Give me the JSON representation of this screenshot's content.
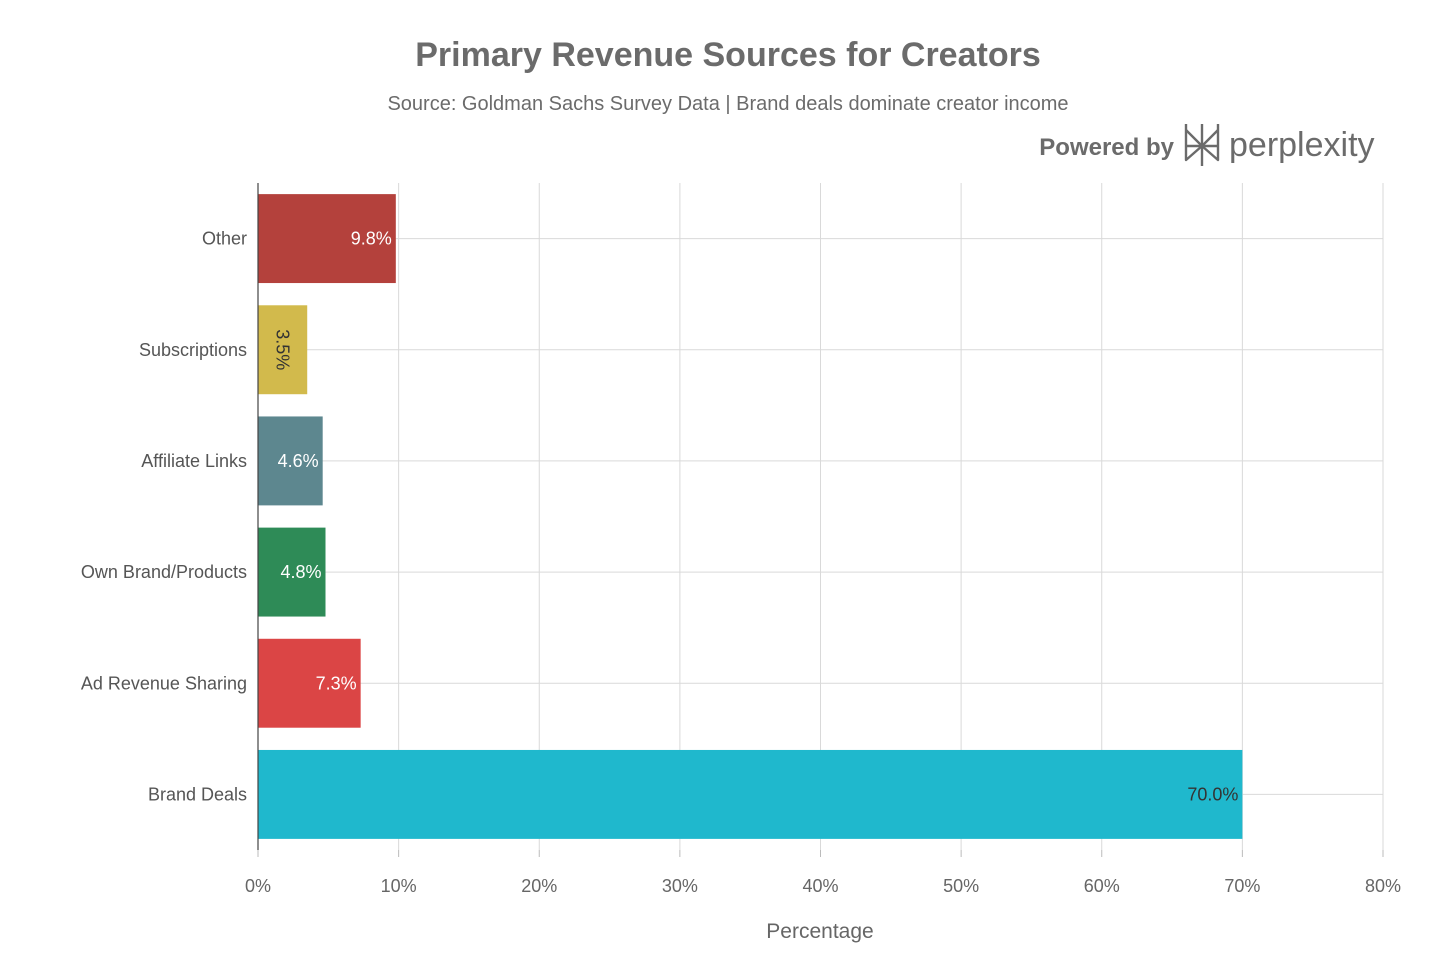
{
  "chart_data": {
    "type": "bar",
    "orientation": "horizontal",
    "title": "Primary Revenue Sources for Creators",
    "subtitle": "Source: Goldman Sachs Survey Data | Brand deals dominate creator income",
    "xlabel": "Percentage",
    "ylabel": "",
    "xlim": [
      0,
      80
    ],
    "x_ticks": [
      "0%",
      "10%",
      "20%",
      "30%",
      "40%",
      "50%",
      "60%",
      "70%",
      "80%"
    ],
    "grid": true,
    "categories": [
      "Brand Deals",
      "Ad Revenue Sharing",
      "Own Brand/Products",
      "Affiliate Links",
      "Subscriptions",
      "Other"
    ],
    "values": [
      70.0,
      7.3,
      4.8,
      4.6,
      3.5,
      9.8
    ],
    "data_labels": [
      "70.0%",
      "7.3%",
      "4.8%",
      "4.6%",
      "3.5%",
      "9.8%"
    ],
    "colors": [
      "#1FB8CD",
      "#DB4545",
      "#2E8B57",
      "#5D878F",
      "#D2BA4C",
      "#B4413C"
    ],
    "label_colors": [
      "#333333",
      "#ffffff",
      "#ffffff",
      "#ffffff",
      "#333333",
      "#ffffff"
    ]
  },
  "branding": {
    "powered_by": "Powered by",
    "brand_name": "perplexity"
  }
}
